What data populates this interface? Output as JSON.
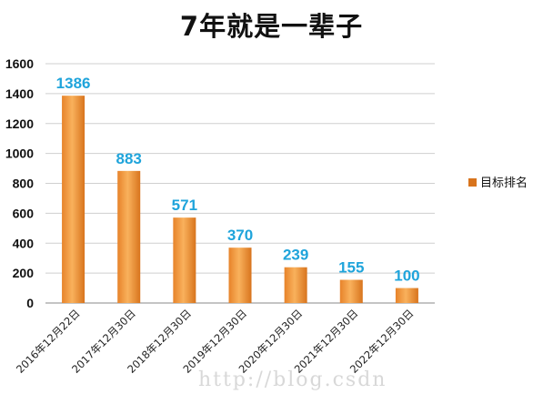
{
  "chart_data": {
    "type": "bar",
    "title": "7年就是一辈子",
    "categories": [
      "2016年12月22日",
      "2017年12月30日",
      "2018年12月30日",
      "2019年12月30日",
      "2020年12月30日",
      "2021年12月30日",
      "2022年12月30日"
    ],
    "series": [
      {
        "name": "目标排名",
        "values": [
          1386,
          883,
          571,
          370,
          239,
          155,
          100
        ]
      }
    ],
    "ylim": [
      0,
      1600
    ],
    "yticks": [
      0,
      200,
      400,
      600,
      800,
      1000,
      1200,
      1400,
      1600
    ],
    "grid": true,
    "legend_position": "right",
    "data_labels": true
  },
  "watermark": "http://blog.csdn",
  "colors": {
    "bar_light": "#f7a54a",
    "bar_dark": "#d8741d",
    "data_label": "#1fa4db",
    "grid": "#cfcfcf",
    "axis": "#8a8a8a"
  }
}
